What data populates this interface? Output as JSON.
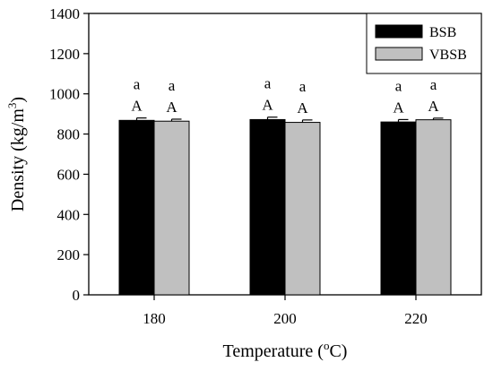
{
  "chart_data": {
    "type": "bar",
    "xlabel_main": "Temperature (",
    "xlabel_sup": "o",
    "xlabel_end": "C)",
    "ylabel_main": "Density (kg/m",
    "ylabel_sup": "3",
    "ylabel_end": ")",
    "categories": [
      "180",
      "200",
      "220"
    ],
    "ylim": [
      0,
      1400
    ],
    "yticks": [
      0,
      200,
      400,
      600,
      800,
      1000,
      1200,
      1400
    ],
    "grid": false,
    "legend_position": "top-right",
    "series": [
      {
        "name": "BSB",
        "color": "#000000",
        "values": [
          868,
          872,
          860
        ],
        "errors": [
          12,
          12,
          12
        ],
        "upper_labels": [
          "a",
          "a",
          "a"
        ],
        "lower_labels": [
          "A",
          "A",
          "A"
        ]
      },
      {
        "name": "VBSB",
        "color": "#c0c0c0",
        "values": [
          864,
          858,
          871
        ],
        "errors": [
          10,
          12,
          8
        ],
        "upper_labels": [
          "a",
          "a",
          "a"
        ],
        "lower_labels": [
          "A",
          "A",
          "A"
        ]
      }
    ]
  }
}
